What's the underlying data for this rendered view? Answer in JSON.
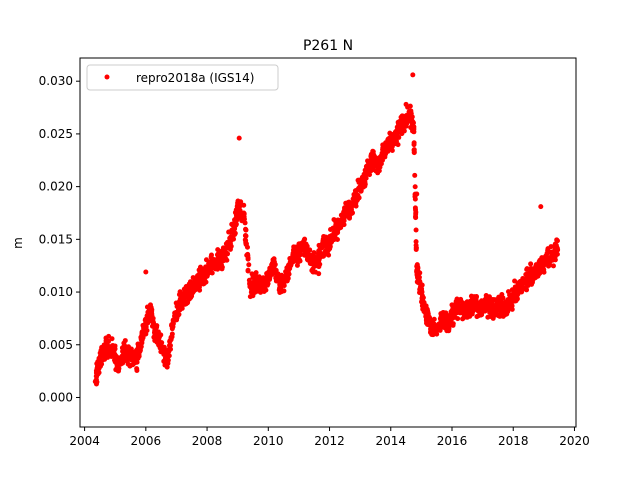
{
  "chart_data": {
    "type": "scatter",
    "title": "P261 N",
    "xlabel": "",
    "ylabel": "m",
    "xlim": [
      2003.85,
      2020.05
    ],
    "ylim": [
      -0.0028,
      0.0322
    ],
    "xticks": [
      2004,
      2006,
      2008,
      2010,
      2012,
      2014,
      2016,
      2018,
      2020
    ],
    "xtick_labels": [
      "2004",
      "2006",
      "2008",
      "2010",
      "2012",
      "2014",
      "2016",
      "2018",
      "2020"
    ],
    "yticks": [
      0.0,
      0.005,
      0.01,
      0.015,
      0.02,
      0.025,
      0.03
    ],
    "ytick_labels": [
      "0.000",
      "0.005",
      "0.010",
      "0.015",
      "0.020",
      "0.025",
      "0.030"
    ],
    "grid": false,
    "legend_position": "top-left",
    "marker_color": "#ff0000",
    "series": [
      {
        "name": "repro2018a (IGS14)",
        "color": "#ff0000",
        "marker": "circle",
        "x": [
          2004.35,
          2004.5,
          2004.7,
          2004.9,
          2005.1,
          2005.3,
          2005.5,
          2005.7,
          2005.85,
          2006.0,
          2006.15,
          2006.3,
          2006.5,
          2006.7,
          2006.9,
          2007.1,
          2007.3,
          2007.5,
          2007.7,
          2007.9,
          2008.1,
          2008.3,
          2008.5,
          2008.7,
          2008.9,
          2009.0,
          2009.2,
          2009.4,
          2009.6,
          2009.8,
          2010.0,
          2010.2,
          2010.4,
          2010.6,
          2010.8,
          2011.0,
          2011.2,
          2011.4,
          2011.6,
          2011.8,
          2012.0,
          2012.2,
          2012.4,
          2012.6,
          2012.8,
          2013.0,
          2013.2,
          2013.4,
          2013.6,
          2013.8,
          2014.0,
          2014.2,
          2014.4,
          2014.6,
          2014.75,
          2014.85,
          2014.95,
          2015.1,
          2015.3,
          2015.5,
          2015.7,
          2015.9,
          2016.1,
          2016.3,
          2016.5,
          2016.7,
          2016.9,
          2017.1,
          2017.3,
          2017.5,
          2017.7,
          2017.9,
          2018.1,
          2018.3,
          2018.5,
          2018.7,
          2018.9,
          2019.1,
          2019.3,
          2019.45
        ],
        "y": [
          0.0015,
          0.0035,
          0.005,
          0.0045,
          0.003,
          0.0045,
          0.004,
          0.0035,
          0.0055,
          0.007,
          0.008,
          0.0065,
          0.005,
          0.0035,
          0.007,
          0.009,
          0.0095,
          0.01,
          0.011,
          0.0115,
          0.0125,
          0.013,
          0.013,
          0.0145,
          0.016,
          0.018,
          0.0175,
          0.0105,
          0.011,
          0.0105,
          0.0115,
          0.0125,
          0.0105,
          0.0115,
          0.0135,
          0.0135,
          0.0145,
          0.013,
          0.0125,
          0.0145,
          0.0145,
          0.016,
          0.0165,
          0.018,
          0.0185,
          0.02,
          0.0215,
          0.0225,
          0.022,
          0.0235,
          0.024,
          0.025,
          0.026,
          0.027,
          0.0255,
          0.012,
          0.011,
          0.0085,
          0.0065,
          0.0065,
          0.0075,
          0.007,
          0.0085,
          0.0085,
          0.008,
          0.009,
          0.0085,
          0.009,
          0.0085,
          0.0085,
          0.0085,
          0.009,
          0.01,
          0.0105,
          0.0115,
          0.012,
          0.0125,
          0.013,
          0.0135,
          0.014
        ]
      }
    ],
    "outliers": {
      "x": [
        2009.05,
        2014.72,
        2006.0,
        2018.9,
        2014.85
      ],
      "y": [
        0.0246,
        0.0306,
        0.0119,
        0.0181,
        0.0193
      ]
    }
  }
}
